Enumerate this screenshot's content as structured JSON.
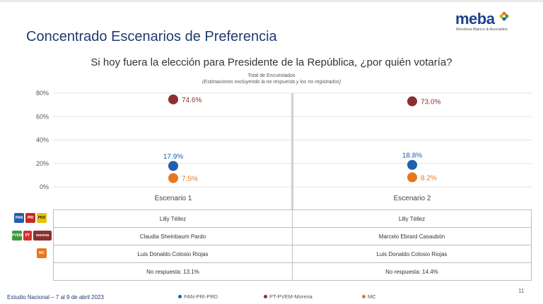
{
  "header": {
    "title": "Concentrado Escenarios de Preferencia",
    "logo_word": "meba",
    "logo_sub": "Mendoza Blanco & Asociados"
  },
  "question": "Si hoy fuera la elección para Presidente de la República, ¿por quién votaría?",
  "note_line1": "Total de Encuestados",
  "note_line2": "(Estimaciones excluyendo la no respuesta y los no registrados)",
  "chart_data": {
    "type": "scatter",
    "ylim": [
      0,
      80
    ],
    "yticks": [
      0,
      20,
      40,
      60,
      80
    ],
    "ytick_labels": [
      "0%",
      "20%",
      "40%",
      "60%",
      "80%"
    ],
    "categories": [
      "Escenario 1",
      "Escenario 2"
    ],
    "series": [
      {
        "name": "PAN-PRI-PRD",
        "color": "#1f5fae",
        "values": [
          17.9,
          18.8
        ],
        "labels": [
          "17.9%",
          "18.8%"
        ],
        "label_position": "above"
      },
      {
        "name": "PT-PVEM-Morena",
        "color": "#8c2f2f",
        "values": [
          74.6,
          73.0
        ],
        "labels": [
          "74.6%",
          "73.0%"
        ],
        "label_position": "right"
      },
      {
        "name": "MC",
        "color": "#e8761c",
        "values": [
          7.5,
          8.2
        ],
        "labels": [
          "7.5%",
          "8.2%"
        ],
        "label_position": "right"
      }
    ],
    "grid": true
  },
  "table": {
    "rows": [
      {
        "party": "PAN-PRI-PRD",
        "e1": "Lilly Téllez",
        "e2": "Lilly Téllez"
      },
      {
        "party": "PT-PVEM-Morena",
        "e1": "Claudia Sheinbaum Pardo",
        "e2": "Marcelo Ebrard Casaubón"
      },
      {
        "party": "MC",
        "e1": "Luis Donaldo Colosio Riojas",
        "e2": "Luis Donaldo Colosio Riojas"
      },
      {
        "party": "",
        "e1": "No respuesta: 13.1%",
        "e2": "No respuesta: 14.4%"
      }
    ]
  },
  "party_logos": {
    "pan": "PAN",
    "pri": "PRI",
    "prd": "PRD",
    "pvem": "PVEM",
    "pt": "PT",
    "morena": "morena",
    "mc": "MC"
  },
  "legend": [
    "PAN-PRI-PRD",
    "PT-PVEM-Morena",
    "MC"
  ],
  "legend_colors": [
    "#1f5fae",
    "#8c2f2f",
    "#e8761c"
  ],
  "footer": "Estudio Nacional – 7 al 9 de abril 2023",
  "page_number": "11"
}
